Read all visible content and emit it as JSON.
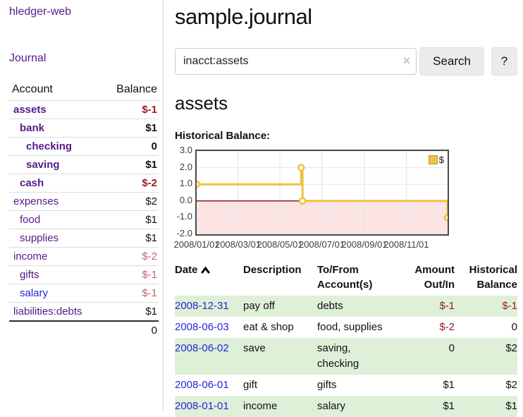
{
  "sidebar": {
    "brand": "hledger-web",
    "journal_link": "Journal",
    "accounts_table": {
      "account_header": "Account",
      "balance_header": "Balance",
      "rows": [
        {
          "name": "assets",
          "depth": 0,
          "balance": "$-1",
          "bold": true,
          "balance_tone": "neg-strong",
          "link_tone": "purple"
        },
        {
          "name": "bank",
          "depth": 1,
          "balance": "$1",
          "bold": true,
          "balance_tone": "normal",
          "link_tone": "purple"
        },
        {
          "name": "checking",
          "depth": 2,
          "balance": "0",
          "bold": true,
          "balance_tone": "normal",
          "link_tone": "purple"
        },
        {
          "name": "saving",
          "depth": 2,
          "balance": "$1",
          "bold": true,
          "balance_tone": "normal",
          "link_tone": "purple"
        },
        {
          "name": "cash",
          "depth": 1,
          "balance": "$-2",
          "bold": true,
          "balance_tone": "neg-strong",
          "link_tone": "purple"
        },
        {
          "name": "expenses",
          "depth": 0,
          "balance": "$2",
          "bold": false,
          "balance_tone": "normal",
          "link_tone": "purple"
        },
        {
          "name": "food",
          "depth": 1,
          "balance": "$1",
          "bold": false,
          "balance_tone": "normal",
          "link_tone": "purple"
        },
        {
          "name": "supplies",
          "depth": 1,
          "balance": "$1",
          "bold": false,
          "balance_tone": "normal",
          "link_tone": "purple"
        },
        {
          "name": "income",
          "depth": 0,
          "balance": "$-2",
          "bold": false,
          "balance_tone": "neg-soft",
          "link_tone": "purple"
        },
        {
          "name": "gifts",
          "depth": 1,
          "balance": "$-1",
          "bold": false,
          "balance_tone": "neg-soft",
          "link_tone": "purple"
        },
        {
          "name": "salary",
          "depth": 1,
          "balance": "$-1",
          "bold": false,
          "balance_tone": "neg-soft",
          "link_tone": "blue"
        },
        {
          "name": "liabilities:debts",
          "depth": 0,
          "balance": "$1",
          "bold": false,
          "balance_tone": "normal",
          "link_tone": "purple"
        }
      ],
      "total": "0"
    }
  },
  "main": {
    "title": "sample.journal",
    "search": {
      "value": "inacct:assets",
      "clear_icon": "×",
      "search_button": "Search",
      "help_button": "?"
    },
    "account_heading": "assets",
    "chart_label": "Historical Balance:"
  },
  "chart_data": {
    "type": "line",
    "style": "step-after",
    "title": "Historical Balance",
    "legend": {
      "label": "$",
      "position": "top-right"
    },
    "grid": true,
    "ylim": [
      -2,
      3
    ],
    "x_range_days": [
      0,
      365
    ],
    "y_ticks": [
      {
        "label": "3.0",
        "value": 3
      },
      {
        "label": "2.0",
        "value": 2
      },
      {
        "label": "1.0",
        "value": 1
      },
      {
        "label": "0.0",
        "value": 0
      },
      {
        "label": "-1.0",
        "value": -1
      },
      {
        "label": "-2.0",
        "value": -2
      }
    ],
    "x_ticks": [
      {
        "label": "2008/01/01",
        "day": 0
      },
      {
        "label": "2008/03/01",
        "day": 60
      },
      {
        "label": "2008/05/01",
        "day": 121
      },
      {
        "label": "2008/07/01",
        "day": 182
      },
      {
        "label": "2008/09/01",
        "day": 244
      },
      {
        "label": "2008/11/01",
        "day": 305
      }
    ],
    "points": [
      {
        "date": "2008-01-01",
        "day": 0,
        "value": 1
      },
      {
        "date": "2008-06-01",
        "day": 152,
        "value": 2
      },
      {
        "date": "2008-06-03",
        "day": 154,
        "value": 0
      },
      {
        "date": "2008-12-31",
        "day": 365,
        "value": -1
      }
    ],
    "line_color": "#edc240",
    "marker_fill": "#ffffff",
    "negative_region_color": "#fce4e4",
    "zero_line_color": "#8b1a1a",
    "grid_color": "#e4e4e4",
    "border_color": "#4a4a4a"
  },
  "register_table": {
    "headers": {
      "date": "Date",
      "description": "Description",
      "accounts": "To/From Account(s)",
      "amount": "Amount Out/In",
      "balance": "Historical Balance"
    },
    "sort": {
      "column": "date",
      "direction": "ascending"
    },
    "rows": [
      {
        "date": "2008-12-31",
        "description": "pay off",
        "accounts": "debts",
        "amount": "$-1",
        "balance": "$-1"
      },
      {
        "date": "2008-06-03",
        "description": "eat & shop",
        "accounts": "food, supplies",
        "amount": "$-2",
        "balance": "0"
      },
      {
        "date": "2008-06-02",
        "description": "save",
        "accounts": "saving, checking",
        "amount": "0",
        "balance": "$2"
      },
      {
        "date": "2008-06-01",
        "description": "gift",
        "accounts": "gifts",
        "amount": "$1",
        "balance": "$2"
      },
      {
        "date": "2008-01-01",
        "description": "income",
        "accounts": "salary",
        "amount": "$1",
        "balance": "$1"
      }
    ]
  },
  "colors": {
    "link_purple": "#551a8b",
    "link_blue": "#2626d9",
    "negative_strong": "#961c1c",
    "negative_soft": "#bf666a",
    "row_stripe_green": "#dff0d8"
  }
}
